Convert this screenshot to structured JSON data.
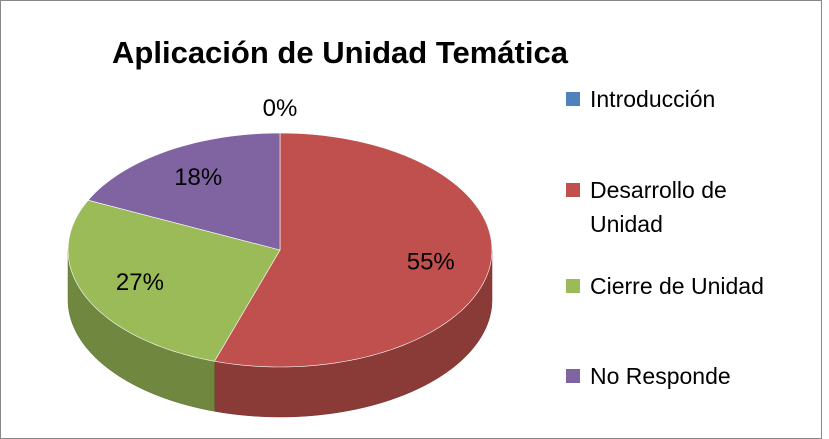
{
  "chart_data": {
    "type": "pie3d",
    "title": "Aplicación de Unidad Temática",
    "series": [
      {
        "name": "Introducción",
        "color": "#4f81bd",
        "values": [
          0
        ],
        "value_labels": [
          "0%"
        ]
      },
      {
        "name": "Desarrollo de Unidad",
        "color": "#c0504d",
        "values": [
          55
        ],
        "value_labels": [
          "55%"
        ]
      },
      {
        "name": "Cierre de Unidad",
        "color": "#9bbb59",
        "values": [
          27
        ],
        "value_labels": [
          "27%"
        ]
      },
      {
        "name": "No Responde",
        "color": "#8064a2",
        "values": [
          18
        ],
        "value_labels": [
          "18%"
        ]
      }
    ],
    "legend": "right"
  }
}
